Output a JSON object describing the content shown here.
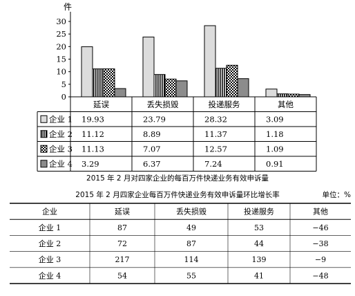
{
  "chart_data": [
    {
      "type": "bar",
      "title": "2015 年 2 月对四家企业的每百万件快递业务有效申诉量",
      "ylabel": "件",
      "ylim": [
        0,
        30
      ],
      "yticks": [
        "0",
        "5",
        "10",
        "15",
        "20",
        "25",
        "30"
      ],
      "categories": [
        "延误",
        "丢失损毁",
        "投递服务",
        "其他"
      ],
      "legend_placement": "table-left",
      "series": [
        {
          "name": "企业 1",
          "pattern": "light-gray",
          "fill": "#dcdcdc",
          "values": [
            19.93,
            23.79,
            28.32,
            3.09
          ],
          "labels": [
            "19.93",
            "23.79",
            "28.32",
            "3.09"
          ]
        },
        {
          "name": "企业 2",
          "pattern": "vertical-stripes",
          "fill": "#000000",
          "values": [
            11.12,
            8.89,
            11.37,
            1.18
          ],
          "labels": [
            "11.12",
            "8.89",
            "11.37",
            "1.18"
          ]
        },
        {
          "name": "企业 3",
          "pattern": "checker",
          "fill": "#7a7a7a",
          "values": [
            11.13,
            7.07,
            12.57,
            1.09
          ],
          "labels": [
            "11.13",
            "7.07",
            "12.57",
            "1.09"
          ]
        },
        {
          "name": "企业 4",
          "pattern": "dark-gray",
          "fill": "#8c8c8c",
          "values": [
            3.29,
            6.37,
            7.24,
            0.91
          ],
          "labels": [
            "3.29",
            "6.37",
            "7.24",
            "0.91"
          ]
        }
      ]
    },
    {
      "type": "table",
      "title": "2015 年 2 月四家企业每百万件快递业务有效申诉量环比增长率",
      "unit": "单位：%",
      "columns": [
        "企业",
        "延误",
        "丢失损毁",
        "投递服务",
        "其他"
      ],
      "rows": [
        [
          "企业 1",
          "87",
          "49",
          "53",
          "−46"
        ],
        [
          "企业 2",
          "72",
          "87",
          "44",
          "−38"
        ],
        [
          "企业 3",
          "217",
          "114",
          "139",
          "−9"
        ],
        [
          "企业 4",
          "54",
          "55",
          "41",
          "−48"
        ]
      ]
    }
  ]
}
